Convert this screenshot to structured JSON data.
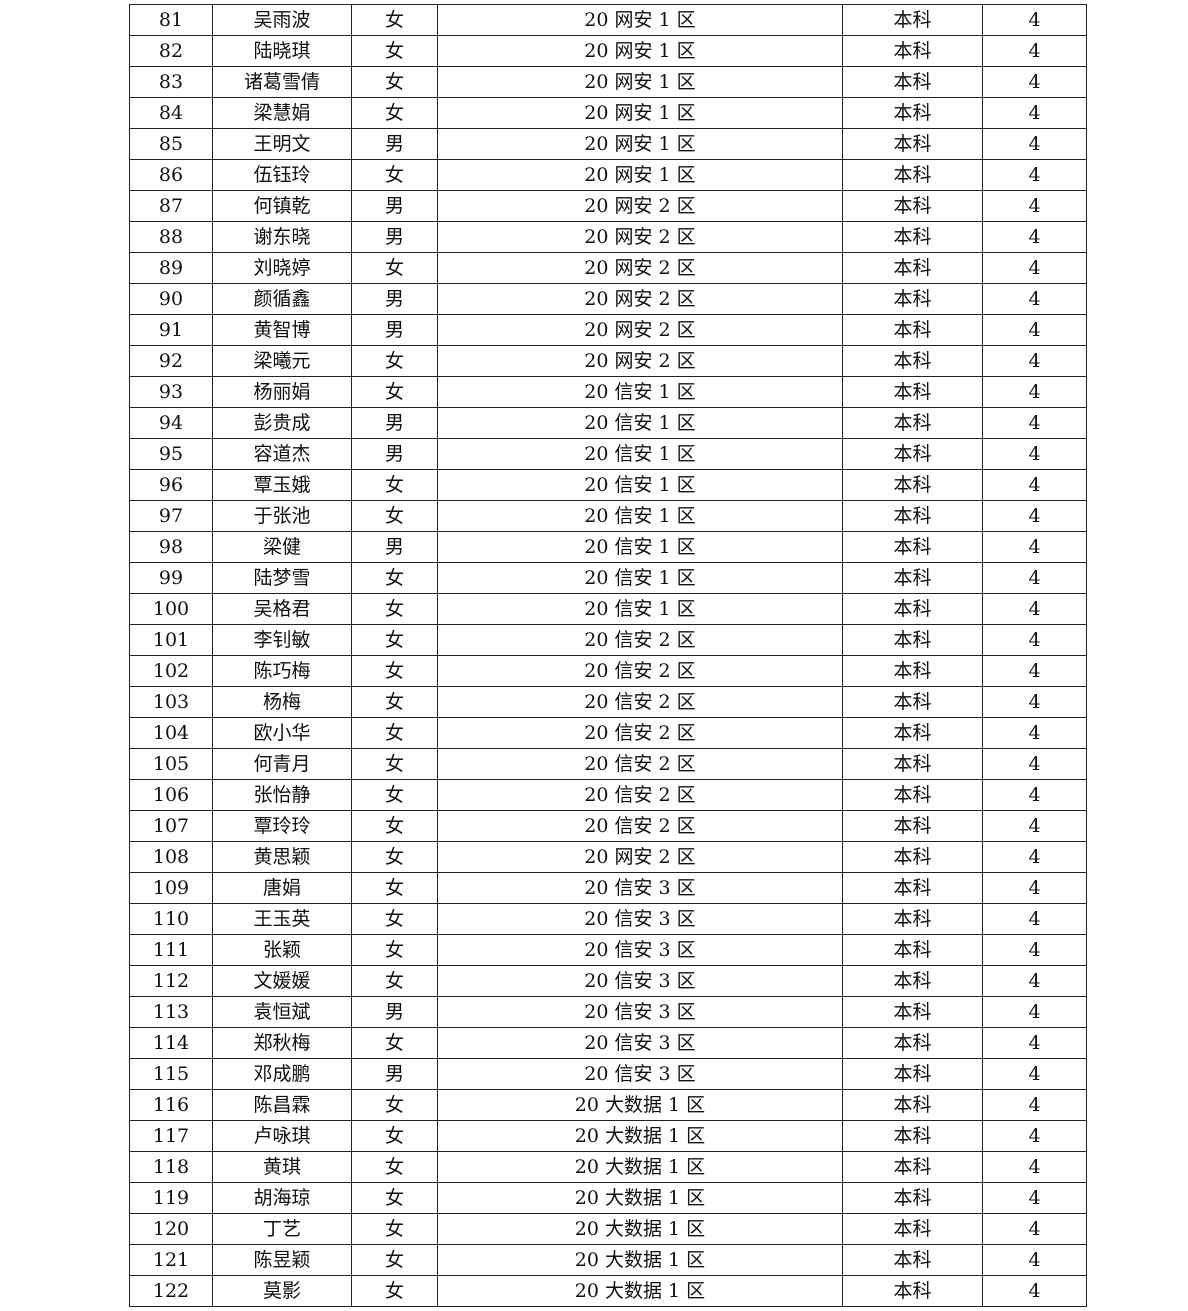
{
  "rows": [
    [
      "81",
      "吴雨波",
      "女",
      "20 网安 1 区",
      "本科",
      "4"
    ],
    [
      "82",
      "陆晓琪",
      "女",
      "20 网安 1 区",
      "本科",
      "4"
    ],
    [
      "83",
      "诸葛雪倩",
      "女",
      "20 网安 1 区",
      "本科",
      "4"
    ],
    [
      "84",
      "梁慧娟",
      "女",
      "20 网安 1 区",
      "本科",
      "4"
    ],
    [
      "85",
      "王明文",
      "男",
      "20 网安 1 区",
      "本科",
      "4"
    ],
    [
      "86",
      "伍钰玲",
      "女",
      "20 网安 1 区",
      "本科",
      "4"
    ],
    [
      "87",
      "何镇乾",
      "男",
      "20 网安 2 区",
      "本科",
      "4"
    ],
    [
      "88",
      "谢东晓",
      "男",
      "20 网安 2 区",
      "本科",
      "4"
    ],
    [
      "89",
      "刘晓婷",
      "女",
      "20 网安 2 区",
      "本科",
      "4"
    ],
    [
      "90",
      "颜循鑫",
      "男",
      "20 网安 2 区",
      "本科",
      "4"
    ],
    [
      "91",
      "黄智博",
      "男",
      "20 网安 2 区",
      "本科",
      "4"
    ],
    [
      "92",
      "梁曦元",
      "女",
      "20 网安 2 区",
      "本科",
      "4"
    ],
    [
      "93",
      "杨丽娟",
      "女",
      "20 信安 1 区",
      "本科",
      "4"
    ],
    [
      "94",
      "彭贵成",
      "男",
      "20 信安 1 区",
      "本科",
      "4"
    ],
    [
      "95",
      "容道杰",
      "男",
      "20 信安 1 区",
      "本科",
      "4"
    ],
    [
      "96",
      "覃玉娥",
      "女",
      "20 信安 1 区",
      "本科",
      "4"
    ],
    [
      "97",
      "于张池",
      "女",
      "20 信安 1 区",
      "本科",
      "4"
    ],
    [
      "98",
      "梁健",
      "男",
      "20 信安 1 区",
      "本科",
      "4"
    ],
    [
      "99",
      "陆梦雪",
      "女",
      "20 信安 1 区",
      "本科",
      "4"
    ],
    [
      "100",
      "吴格君",
      "女",
      "20 信安 1 区",
      "本科",
      "4"
    ],
    [
      "101",
      "李钊敏",
      "女",
      "20 信安 2 区",
      "本科",
      "4"
    ],
    [
      "102",
      "陈巧梅",
      "女",
      "20 信安 2 区",
      "本科",
      "4"
    ],
    [
      "103",
      "杨梅",
      "女",
      "20 信安 2 区",
      "本科",
      "4"
    ],
    [
      "104",
      "欧小华",
      "女",
      "20 信安 2 区",
      "本科",
      "4"
    ],
    [
      "105",
      "何青月",
      "女",
      "20 信安 2 区",
      "本科",
      "4"
    ],
    [
      "106",
      "张怡静",
      "女",
      "20 信安 2 区",
      "本科",
      "4"
    ],
    [
      "107",
      "覃玲玲",
      "女",
      "20 信安 2 区",
      "本科",
      "4"
    ],
    [
      "108",
      "黄思颖",
      "女",
      "20 网安 2 区",
      "本科",
      "4"
    ],
    [
      "109",
      "唐娟",
      "女",
      "20 信安 3 区",
      "本科",
      "4"
    ],
    [
      "110",
      "王玉英",
      "女",
      "20 信安 3 区",
      "本科",
      "4"
    ],
    [
      "111",
      "张颖",
      "女",
      "20 信安 3 区",
      "本科",
      "4"
    ],
    [
      "112",
      "文媛媛",
      "女",
      "20 信安 3 区",
      "本科",
      "4"
    ],
    [
      "113",
      "袁恒斌",
      "男",
      "20 信安 3 区",
      "本科",
      "4"
    ],
    [
      "114",
      "郑秋梅",
      "女",
      "20 信安 3 区",
      "本科",
      "4"
    ],
    [
      "115",
      "邓成鹏",
      "男",
      "20 信安 3 区",
      "本科",
      "4"
    ],
    [
      "116",
      "陈昌霖",
      "女",
      "20 大数据 1 区",
      "本科",
      "4"
    ],
    [
      "117",
      "卢咏琪",
      "女",
      "20 大数据 1 区",
      "本科",
      "4"
    ],
    [
      "118",
      "黄琪",
      "女",
      "20 大数据 1 区",
      "本科",
      "4"
    ],
    [
      "119",
      "胡海琼",
      "女",
      "20 大数据 1 区",
      "本科",
      "4"
    ],
    [
      "120",
      "丁艺",
      "女",
      "20 大数据 1 区",
      "本科",
      "4"
    ],
    [
      "121",
      "陈昱颖",
      "女",
      "20 大数据 1 区",
      "本科",
      "4"
    ],
    [
      "122",
      "莫影",
      "女",
      "20 大数据 1 区",
      "本科",
      "4"
    ]
  ]
}
